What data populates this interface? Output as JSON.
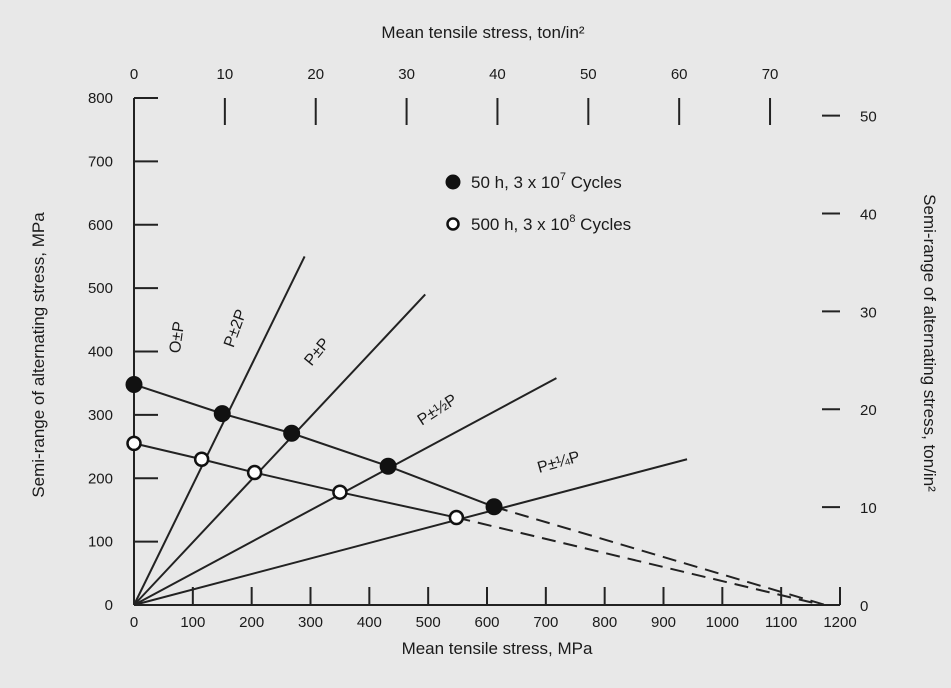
{
  "chart_data": {
    "type": "line",
    "title": "",
    "xlabel": "Mean tensile stress, MPa",
    "ylabel": "Semi-range of alternating stress, MPa",
    "x2label": "Mean tensile stress, ton/in²",
    "y2label": "Semi-range of alternating stress, ton/in²",
    "xlim": [
      0,
      1200
    ],
    "ylim": [
      0,
      800
    ],
    "x2lim": [
      0,
      77.7
    ],
    "y2lim": [
      0,
      51.8
    ],
    "x_ticks": [
      0,
      100,
      200,
      300,
      400,
      500,
      600,
      700,
      800,
      900,
      1000,
      1100,
      1200
    ],
    "y_ticks": [
      0,
      100,
      200,
      300,
      400,
      500,
      600,
      700,
      800
    ],
    "x2_ticks": [
      0,
      10,
      20,
      30,
      40,
      50,
      60,
      70
    ],
    "y2_ticks": [
      0,
      10,
      20,
      30,
      40,
      50
    ],
    "grid": false,
    "legend_position": "top-right",
    "legend": [
      {
        "marker": "filled",
        "text": "50 h, 3 x 10",
        "sup": "7",
        "suffix": " Cycles"
      },
      {
        "marker": "open",
        "text": "500 h, 3 x 10",
        "sup": "8",
        "suffix": " Cycles"
      }
    ],
    "load_lines": [
      {
        "label": "O±P",
        "end": [
          0,
          0
        ]
      },
      {
        "label": "P±2P",
        "end": [
          290,
          550
        ]
      },
      {
        "label": "P±P",
        "end": [
          495,
          490
        ]
      },
      {
        "label": "P±½P",
        "end": [
          718,
          358
        ]
      },
      {
        "label": "P±¼P",
        "end": [
          940,
          230
        ]
      }
    ],
    "series": [
      {
        "name": "50 h, 3 x 10^7 Cycles",
        "marker": "filled",
        "x": [
          0,
          150,
          268,
          432,
          612
        ],
        "y": [
          348,
          302,
          271,
          219,
          155
        ],
        "dashed_extension_to": [
          1175,
          0
        ]
      },
      {
        "name": "500 h, 3 x 10^8 Cycles",
        "marker": "open",
        "x": [
          0,
          115,
          205,
          350,
          548
        ],
        "y": [
          255,
          230,
          209,
          178,
          138
        ],
        "dashed_extension_to": [
          1170,
          0
        ]
      }
    ]
  }
}
